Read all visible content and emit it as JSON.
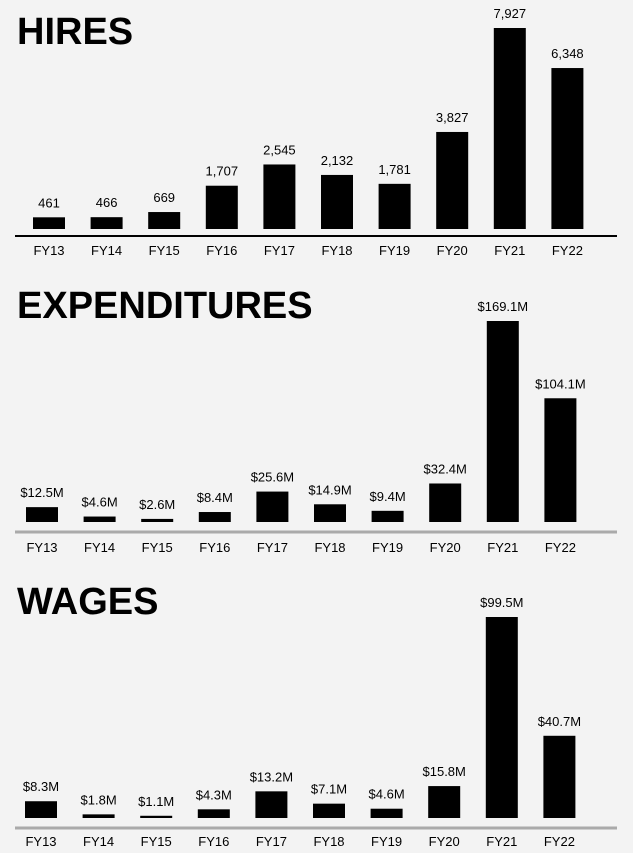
{
  "colors": {
    "background": "#f3f3f3",
    "bar": "#000000",
    "baseline_dark": "#000000",
    "baseline_light": "#aaaaaa"
  },
  "chart_data": [
    {
      "type": "bar",
      "title": "HIRES",
      "categories": [
        "FY13",
        "FY14",
        "FY15",
        "FY16",
        "FY17",
        "FY18",
        "FY19",
        "FY20",
        "FY21",
        "FY22"
      ],
      "values": [
        461,
        466,
        669,
        1707,
        2545,
        2132,
        1781,
        3827,
        7927,
        6348
      ],
      "labels": [
        "461",
        "466",
        "669",
        "1,707",
        "2,545",
        "2,132",
        "1,781",
        "3,827",
        "7,927",
        "6,348"
      ],
      "ylim": [
        0,
        7927
      ],
      "baseline": "dark"
    },
    {
      "type": "bar",
      "title": "EXPENDITURES",
      "categories": [
        "FY13",
        "FY14",
        "FY15",
        "FY16",
        "FY17",
        "FY18",
        "FY19",
        "FY20",
        "FY21",
        "FY22"
      ],
      "values": [
        12.5,
        4.6,
        2.6,
        8.4,
        25.6,
        14.9,
        9.4,
        32.4,
        169.1,
        104.1
      ],
      "labels": [
        "$12.5M",
        "$4.6M",
        "$2.6M",
        "$8.4M",
        "$25.6M",
        "$14.9M",
        "$9.4M",
        "$32.4M",
        "$169.1M",
        "$104.1M"
      ],
      "ylim": [
        0,
        169.1
      ],
      "baseline": "light"
    },
    {
      "type": "bar",
      "title": "WAGES",
      "categories": [
        "FY13",
        "FY14",
        "FY15",
        "FY16",
        "FY17",
        "FY18",
        "FY19",
        "FY20",
        "FY21",
        "FY22"
      ],
      "values": [
        8.3,
        1.8,
        1.1,
        4.3,
        13.2,
        7.1,
        4.6,
        15.8,
        99.5,
        40.7
      ],
      "labels": [
        "$8.3M",
        "$1.8M",
        "$1.1M",
        "$4.3M",
        "$13.2M",
        "$7.1M",
        "$4.6M",
        "$15.8M",
        "$99.5M",
        "$40.7M"
      ],
      "ylim": [
        0,
        99.5
      ],
      "baseline": "light"
    }
  ]
}
